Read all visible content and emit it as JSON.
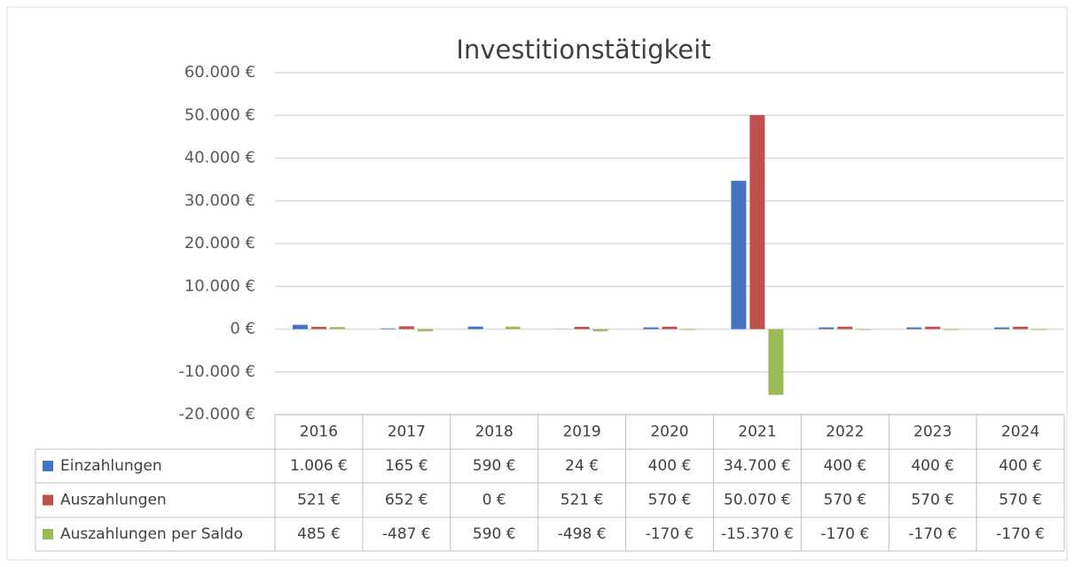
{
  "chart_data": {
    "type": "bar",
    "title": "Investitionstätigkeit",
    "categories": [
      "2016",
      "2017",
      "2018",
      "2019",
      "2020",
      "2021",
      "2022",
      "2023",
      "2024"
    ],
    "series": [
      {
        "name": "Einzahlungen",
        "color": "#4472c4",
        "values": [
          1006,
          165,
          590,
          24,
          400,
          34700,
          400,
          400,
          400
        ],
        "value_labels": [
          "1.006 €",
          "165 €",
          "590 €",
          "24 €",
          "400 €",
          "34.700 €",
          "400 €",
          "400 €",
          "400 €"
        ]
      },
      {
        "name": "Auszahlungen",
        "color": "#c0504d",
        "values": [
          521,
          652,
          0,
          521,
          570,
          50070,
          570,
          570,
          570
        ],
        "value_labels": [
          "521 €",
          "652 €",
          "0 €",
          "521 €",
          "570 €",
          "50.070 €",
          "570 €",
          "570 €",
          "570 €"
        ]
      },
      {
        "name": "Auszahlungen per Saldo",
        "color": "#9bbb59",
        "values": [
          485,
          -487,
          590,
          -498,
          -170,
          -15370,
          -170,
          -170,
          -170
        ],
        "value_labels": [
          "485 €",
          "-487 €",
          "590 €",
          "-498 €",
          "-170 €",
          "-15.370 €",
          "-170 €",
          "-170 €",
          "-170 €"
        ]
      }
    ],
    "ylim": [
      -20000,
      60000
    ],
    "yticks": [
      {
        "value": -20000,
        "label": "-20.000 €"
      },
      {
        "value": -10000,
        "label": "-10.000 €"
      },
      {
        "value": 0,
        "label": "0 €"
      },
      {
        "value": 10000,
        "label": "10.000 €"
      },
      {
        "value": 20000,
        "label": "20.000 €"
      },
      {
        "value": 30000,
        "label": "30.000 €"
      },
      {
        "value": 40000,
        "label": "40.000 €"
      },
      {
        "value": 50000,
        "label": "50.000 €"
      },
      {
        "value": 60000,
        "label": "60.000 €"
      }
    ],
    "grid": true
  }
}
